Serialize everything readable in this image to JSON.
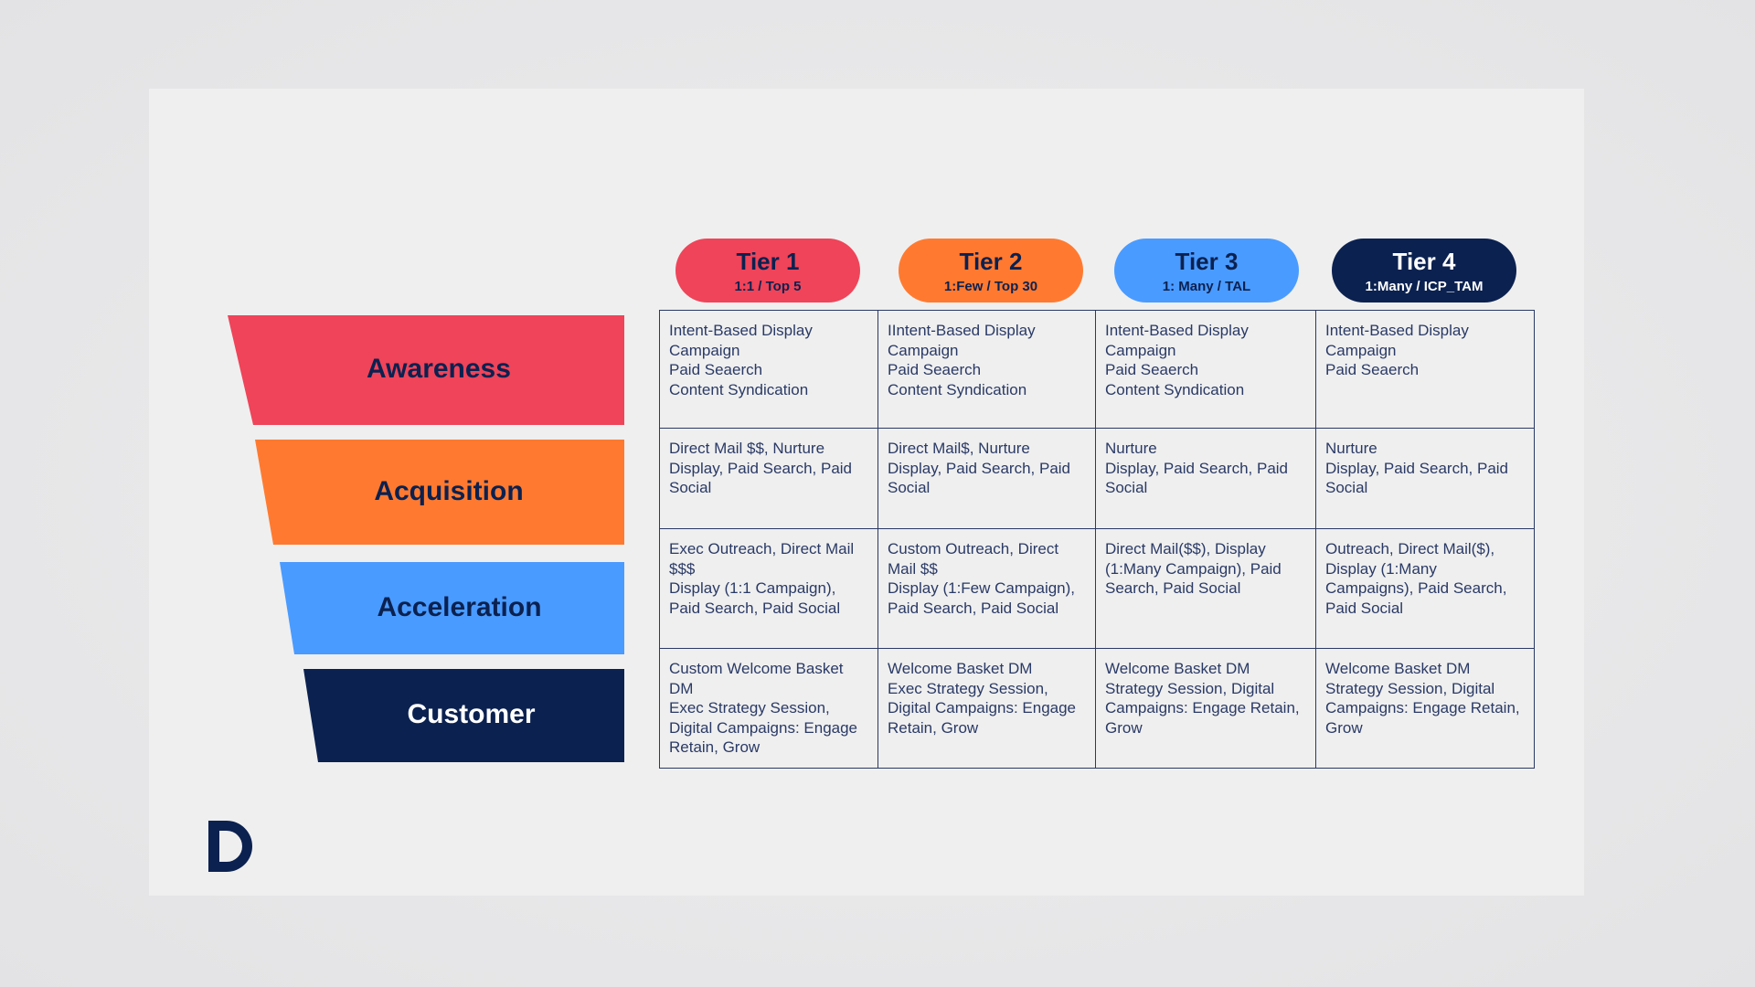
{
  "tiers": [
    {
      "title": "Tier 1",
      "subtitle": "1:1  / Top 5",
      "color": "#ef4459"
    },
    {
      "title": "Tier 2",
      "subtitle": "1:Few / Top 30",
      "color": "#ff7a30"
    },
    {
      "title": "Tier 3",
      "subtitle": "1: Many / TAL",
      "color": "#4a9bff"
    },
    {
      "title": "Tier 4",
      "subtitle": "1:Many / ICP_TAM",
      "color": "#0b2150"
    }
  ],
  "stages": [
    {
      "label": "Awareness",
      "color": "#ef4459",
      "text_color": "#0b2150"
    },
    {
      "label": "Acquisition",
      "color": "#ff7a30",
      "text_color": "#0b2150"
    },
    {
      "label": "Acceleration",
      "color": "#4a9bff",
      "text_color": "#0b2150"
    },
    {
      "label": "Customer",
      "color": "#0b2150",
      "text_color": "#ffffff"
    }
  ],
  "table": {
    "rows": [
      [
        [
          "Intent-Based Display Campaign",
          "Paid Seaerch",
          "Content Syndication"
        ],
        [
          "IIntent-Based Display Campaign",
          "Paid Seaerch",
          "Content Syndication"
        ],
        [
          "Intent-Based Display Campaign",
          "Paid Seaerch",
          "Content Syndication"
        ],
        [
          "Intent-Based Display Campaign",
          "Paid Seaerch"
        ]
      ],
      [
        [
          "Direct Mail $$, Nurture",
          "Display, Paid Search, Paid Social"
        ],
        [
          "Direct Mail$, Nurture",
          "Display, Paid Search, Paid Social"
        ],
        [
          "Nurture",
          "Display, Paid Search, Paid Social"
        ],
        [
          "Nurture",
          "Display, Paid Search, Paid Social"
        ]
      ],
      [
        [
          "Exec Outreach, Direct Mail $$$",
          "Display (1:1 Campaign), Paid Search, Paid Social"
        ],
        [
          "Custom Outreach, Direct Mail $$",
          "Display (1:Few Campaign), Paid Search, Paid Social"
        ],
        [
          "Direct Mail($$), Display (1:Many Campaign), Paid Search, Paid Social"
        ],
        [
          "Outreach, Direct Mail($), Display (1:Many Campaigns), Paid Search, Paid Social"
        ]
      ],
      [
        [
          "Custom Welcome Basket DM",
          "Exec Strategy Session, Digital Campaigns: Engage Retain, Grow"
        ],
        [
          "Welcome Basket DM",
          "Exec Strategy Session, Digital Campaigns: Engage Retain, Grow"
        ],
        [
          "Welcome Basket DM",
          "Strategy Session, Digital Campaigns: Engage Retain, Grow"
        ],
        [
          "Welcome Basket DM",
          "Strategy Session, Digital Campaigns: Engage Retain, Grow"
        ]
      ]
    ]
  }
}
